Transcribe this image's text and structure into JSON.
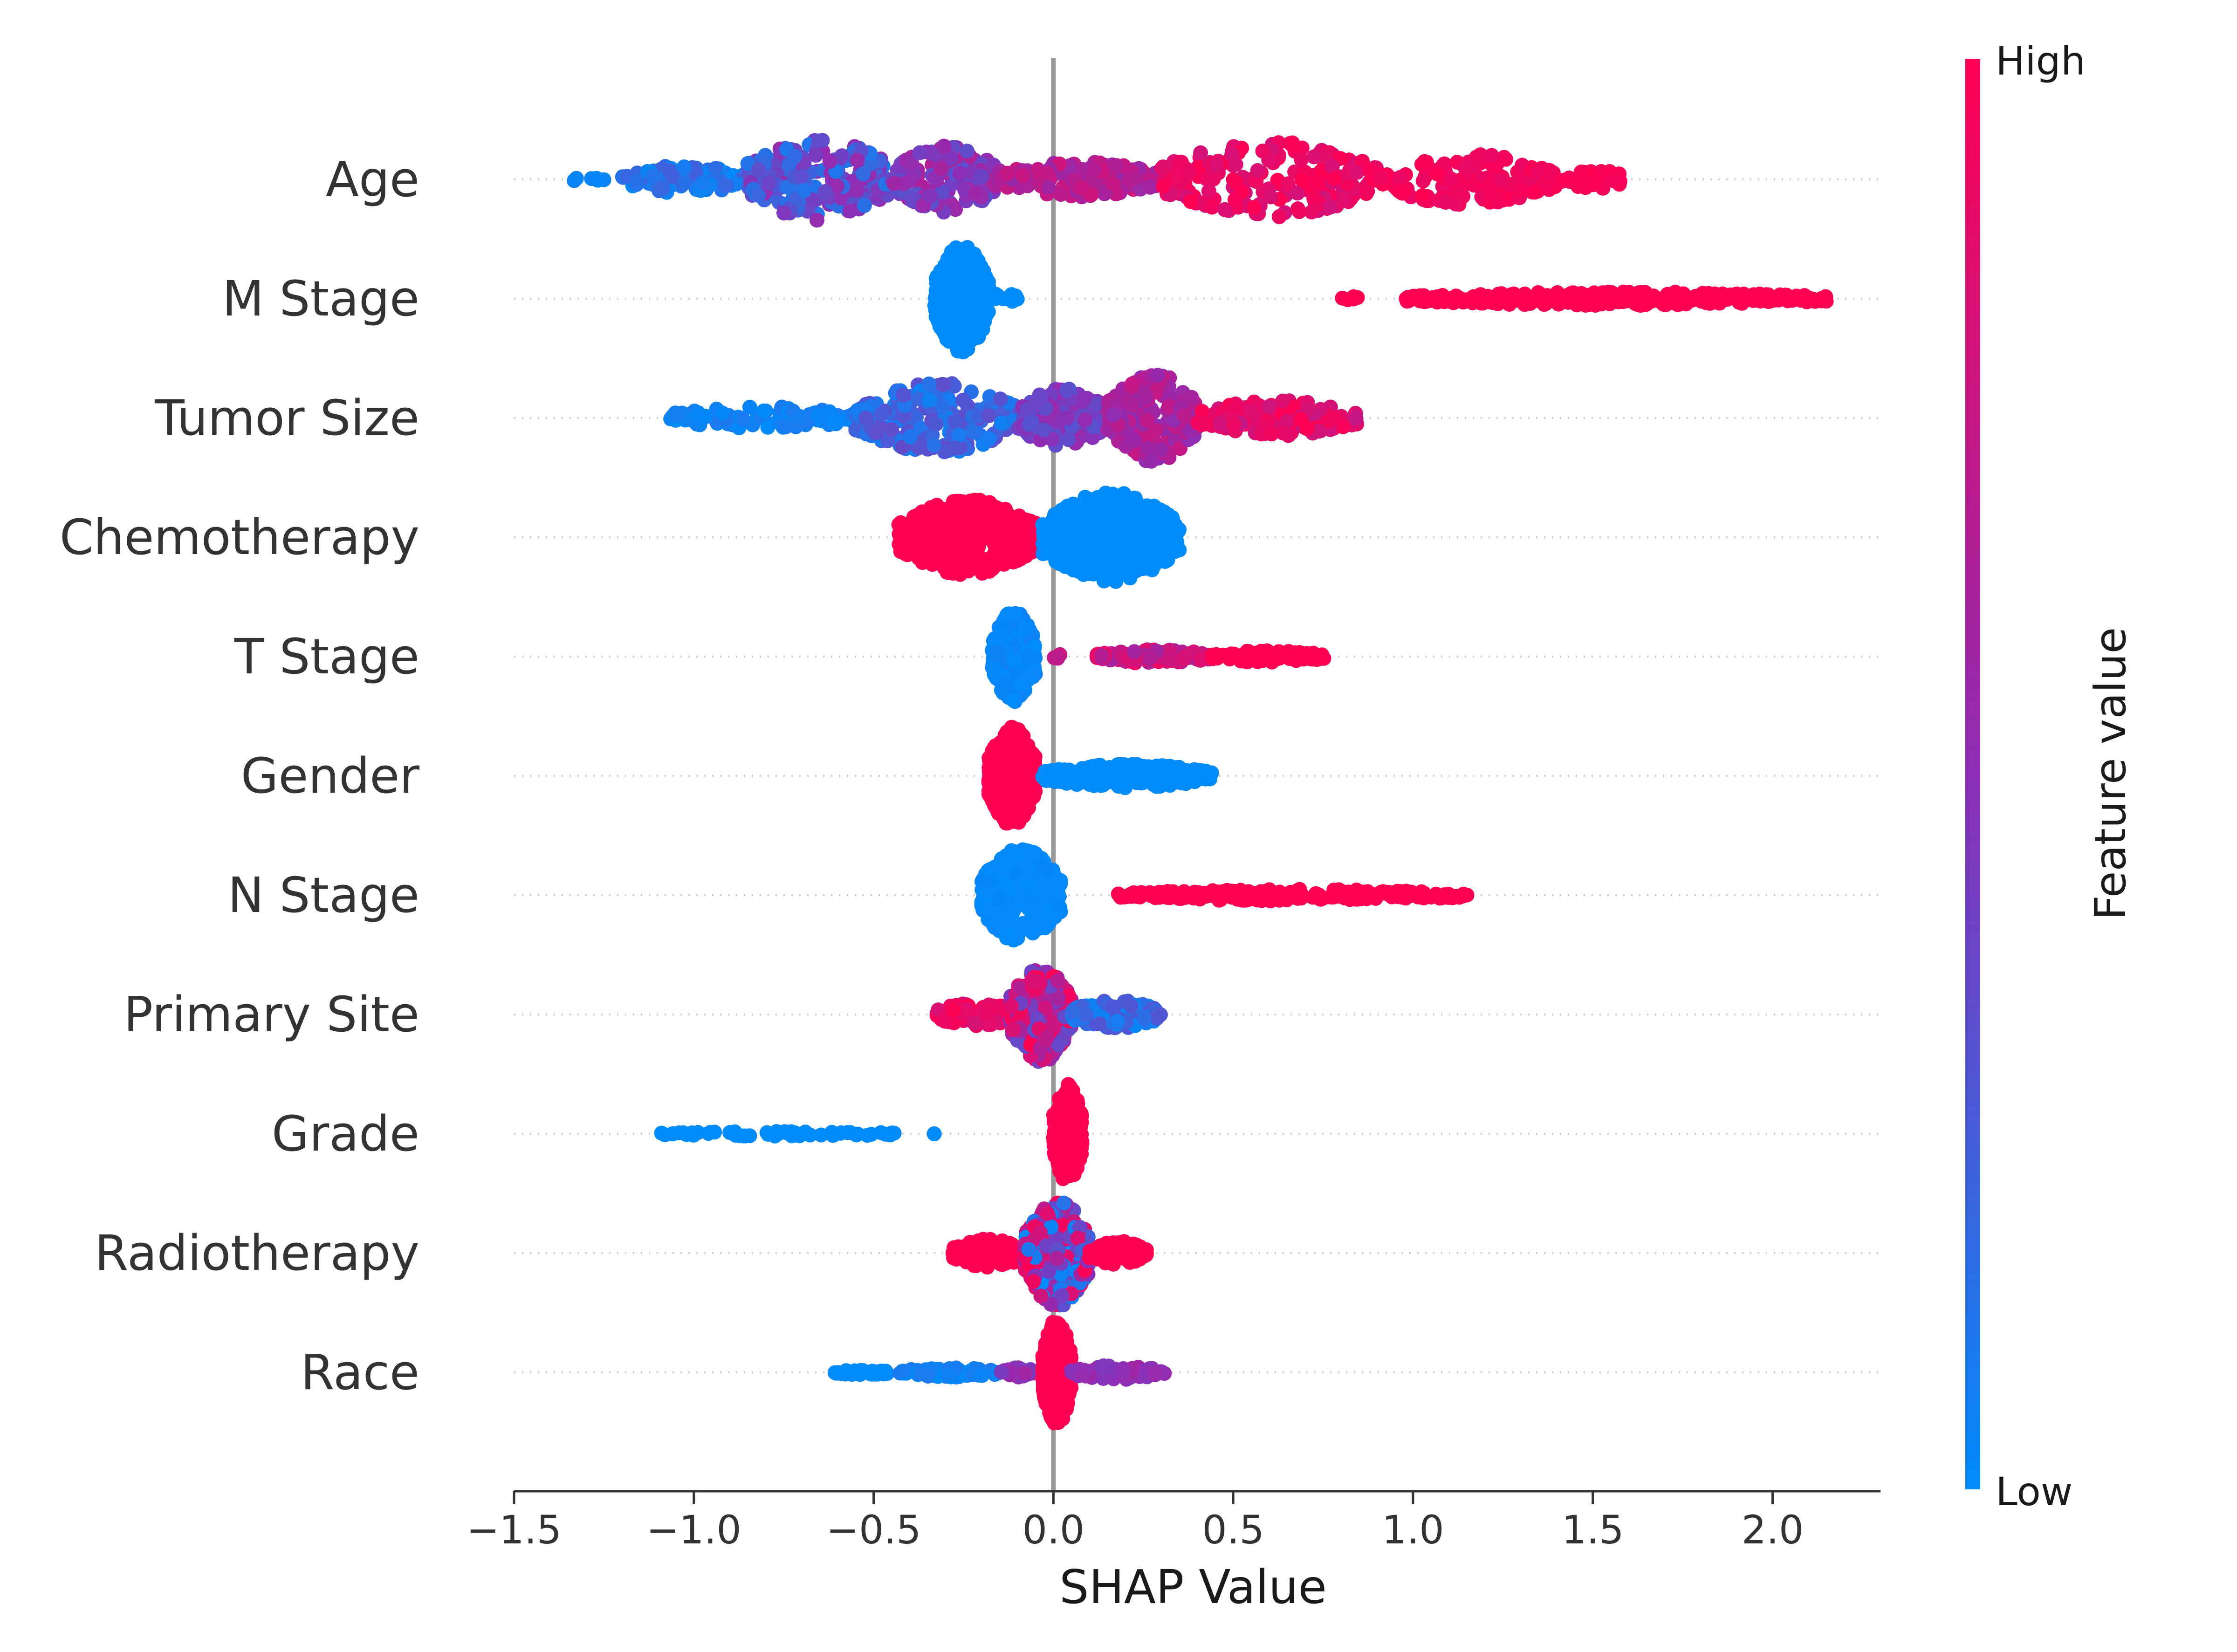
{
  "chart_data": {
    "type": "scatter",
    "subtype": "shap-beeswarm",
    "xlabel": "SHAP Value",
    "xlim": [
      -1.5,
      2.3
    ],
    "xticks": [
      -1.5,
      -1.0,
      -0.5,
      0.0,
      0.5,
      1.0,
      1.5,
      2.0
    ],
    "xtick_labels": [
      "−1.5",
      "−1.0",
      "−0.5",
      "0.0",
      "0.5",
      "1.0",
      "1.5",
      "2.0"
    ],
    "colorbar": {
      "label": "Feature value",
      "high_label": "High",
      "low_label": "Low",
      "low_color": "#008bfb",
      "mid_color": "#8d2eb6",
      "high_color": "#ff0052"
    },
    "features": [
      {
        "name": "Age",
        "clusters": [
          {
            "x": [
              -1.35,
              -1.25
            ],
            "c": [
              0.0,
              0.05
            ],
            "n": 6,
            "w": 0.02
          },
          {
            "x": [
              -1.2,
              -0.85
            ],
            "c": [
              0.0,
              0.25
            ],
            "n": 90,
            "w": 0.12
          },
          {
            "x": [
              -0.85,
              -0.45
            ],
            "c": [
              0.1,
              0.55
            ],
            "n": 220,
            "w": 0.35
          },
          {
            "x": [
              -0.45,
              -0.15
            ],
            "c": [
              0.3,
              0.65
            ],
            "n": 160,
            "w": 0.28
          },
          {
            "x": [
              -0.15,
              0.3
            ],
            "c": [
              0.55,
              0.8
            ],
            "n": 140,
            "w": 0.15
          },
          {
            "x": [
              0.3,
              0.9
            ],
            "c": [
              0.8,
              1.0
            ],
            "n": 200,
            "w": 0.32
          },
          {
            "x": [
              0.9,
              1.4
            ],
            "c": [
              0.9,
              1.0
            ],
            "n": 130,
            "w": 0.22
          },
          {
            "x": [
              1.4,
              1.6
            ],
            "c": [
              0.95,
              1.0
            ],
            "n": 30,
            "w": 0.08
          }
        ]
      },
      {
        "name": "M Stage",
        "clusters": [
          {
            "x": [
              -0.33,
              -0.18
            ],
            "c": [
              0.0,
              0.0
            ],
            "n": 380,
            "w": 0.45
          },
          {
            "x": [
              -0.18,
              -0.1
            ],
            "c": [
              0.0,
              0.0
            ],
            "n": 10,
            "w": 0.05
          },
          {
            "x": [
              0.8,
              0.85
            ],
            "c": [
              1.0,
              1.0
            ],
            "n": 5,
            "w": 0.02
          },
          {
            "x": [
              0.98,
              2.15
            ],
            "c": [
              1.0,
              1.0
            ],
            "n": 300,
            "w": 0.06
          }
        ]
      },
      {
        "name": "Tumor Size",
        "clusters": [
          {
            "x": [
              -1.07,
              -0.55
            ],
            "c": [
              0.0,
              0.1
            ],
            "n": 110,
            "w": 0.1
          },
          {
            "x": [
              -0.55,
              -0.1
            ],
            "c": [
              0.05,
              0.35
            ],
            "n": 220,
            "w": 0.3
          },
          {
            "x": [
              -0.1,
              0.15
            ],
            "c": [
              0.3,
              0.55
            ],
            "n": 170,
            "w": 0.25
          },
          {
            "x": [
              0.15,
              0.4
            ],
            "c": [
              0.5,
              0.75
            ],
            "n": 200,
            "w": 0.38
          },
          {
            "x": [
              0.4,
              0.85
            ],
            "c": [
              0.75,
              1.0
            ],
            "n": 150,
            "w": 0.15
          }
        ]
      },
      {
        "name": "Chemotherapy",
        "clusters": [
          {
            "x": [
              -0.43,
              -0.05
            ],
            "c": [
              1.0,
              1.0
            ],
            "n": 420,
            "w": 0.32
          },
          {
            "x": [
              -0.03,
              0.35
            ],
            "c": [
              0.0,
              0.0
            ],
            "n": 420,
            "w": 0.38
          }
        ]
      },
      {
        "name": "T Stage",
        "clusters": [
          {
            "x": [
              -0.17,
              -0.05
            ],
            "c": [
              0.0,
              0.05
            ],
            "n": 260,
            "w": 0.38
          },
          {
            "x": [
              0.0,
              0.03
            ],
            "c": [
              0.7,
              0.8
            ],
            "n": 3,
            "w": 0.02
          },
          {
            "x": [
              0.12,
              0.44
            ],
            "c": [
              0.6,
              0.95
            ],
            "n": 120,
            "w": 0.06
          },
          {
            "x": [
              0.44,
              0.76
            ],
            "c": [
              1.0,
              1.0
            ],
            "n": 100,
            "w": 0.05
          }
        ]
      },
      {
        "name": "Gender",
        "clusters": [
          {
            "x": [
              -0.18,
              -0.05
            ],
            "c": [
              1.0,
              1.0
            ],
            "n": 380,
            "w": 0.42
          },
          {
            "x": [
              -0.03,
              0.44
            ],
            "c": [
              0.0,
              0.0
            ],
            "n": 260,
            "w": 0.1
          }
        ]
      },
      {
        "name": "N Stage",
        "clusters": [
          {
            "x": [
              -0.2,
              0.02
            ],
            "c": [
              0.0,
              0.02
            ],
            "n": 320,
            "w": 0.4
          },
          {
            "x": [
              0.17,
              1.15
            ],
            "c": [
              1.0,
              1.0
            ],
            "n": 260,
            "w": 0.05
          }
        ]
      },
      {
        "name": "Primary Site",
        "clusters": [
          {
            "x": [
              -0.33,
              -0.1
            ],
            "c": [
              0.8,
              1.0
            ],
            "n": 80,
            "w": 0.1
          },
          {
            "x": [
              -0.12,
              0.05
            ],
            "c": [
              0.3,
              1.0
            ],
            "n": 260,
            "w": 0.4
          },
          {
            "x": [
              0.05,
              0.3
            ],
            "c": [
              0.0,
              0.3
            ],
            "n": 120,
            "w": 0.12
          }
        ]
      },
      {
        "name": "Grade",
        "clusters": [
          {
            "x": [
              -1.1,
              -0.42
            ],
            "c": [
              0.0,
              0.0
            ],
            "n": 60,
            "w": 0.02
          },
          {
            "x": [
              -0.34,
              -0.32
            ],
            "c": [
              0.0,
              0.0
            ],
            "n": 1,
            "w": 0.0
          },
          {
            "x": [
              0.0,
              0.08
            ],
            "c": [
              1.0,
              1.0
            ],
            "n": 280,
            "w": 0.42
          }
        ]
      },
      {
        "name": "Radiotherapy",
        "clusters": [
          {
            "x": [
              -0.28,
              -0.08
            ],
            "c": [
              1.0,
              1.0
            ],
            "n": 140,
            "w": 0.12
          },
          {
            "x": [
              -0.08,
              0.1
            ],
            "c": [
              0.0,
              1.0
            ],
            "n": 280,
            "w": 0.45
          },
          {
            "x": [
              0.1,
              0.26
            ],
            "c": [
              1.0,
              1.0
            ],
            "n": 90,
            "w": 0.1
          }
        ]
      },
      {
        "name": "Race",
        "clusters": [
          {
            "x": [
              -0.61,
              -0.45
            ],
            "c": [
              0.0,
              0.0
            ],
            "n": 40,
            "w": 0.02
          },
          {
            "x": [
              -0.43,
              -0.15
            ],
            "c": [
              0.0,
              0.1
            ],
            "n": 70,
            "w": 0.04
          },
          {
            "x": [
              -0.15,
              -0.05
            ],
            "c": [
              0.4,
              0.6
            ],
            "n": 30,
            "w": 0.04
          },
          {
            "x": [
              -0.03,
              0.05
            ],
            "c": [
              1.0,
              1.0
            ],
            "n": 320,
            "w": 0.45
          },
          {
            "x": [
              0.05,
              0.31
            ],
            "c": [
              0.45,
              0.6
            ],
            "n": 70,
            "w": 0.06
          }
        ]
      }
    ]
  }
}
